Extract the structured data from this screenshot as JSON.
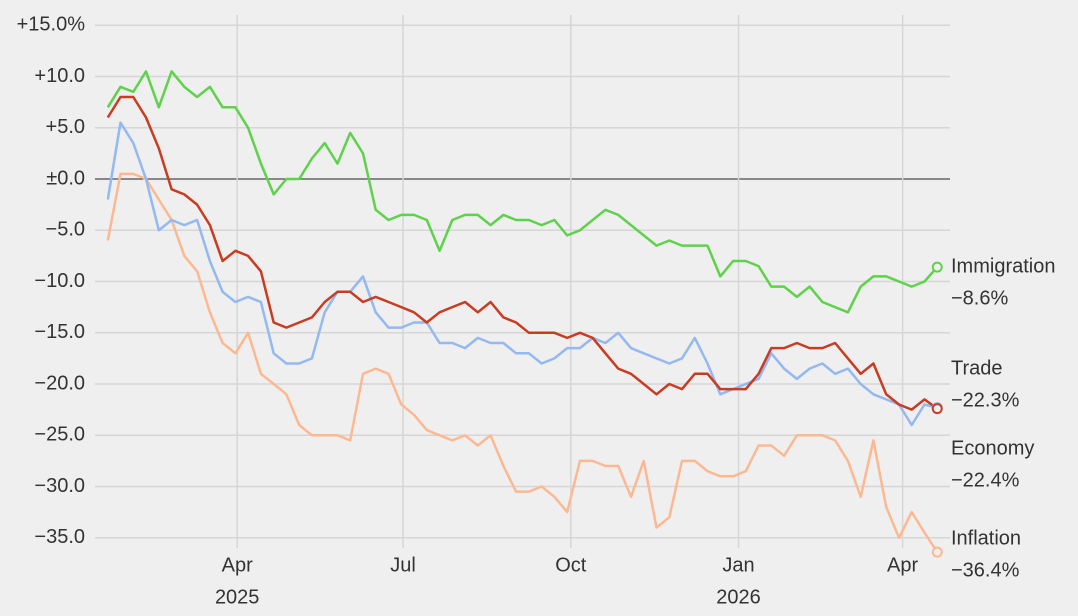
{
  "chart_data": {
    "type": "line",
    "x": [
      "2025-01-20",
      "2025-01-27",
      "2025-02-03",
      "2025-02-10",
      "2025-02-17",
      "2025-02-24",
      "2025-03-03",
      "2025-03-10",
      "2025-03-17",
      "2025-03-24",
      "2025-03-31",
      "2025-04-07",
      "2025-04-14",
      "2025-04-21",
      "2025-04-28",
      "2025-05-05",
      "2025-05-12",
      "2025-05-19",
      "2025-05-26",
      "2025-06-02",
      "2025-06-09",
      "2025-06-16",
      "2025-06-23",
      "2025-06-30",
      "2025-07-07",
      "2025-07-14",
      "2025-07-21",
      "2025-07-28",
      "2025-08-04",
      "2025-08-11",
      "2025-08-18",
      "2025-08-25",
      "2025-09-01",
      "2025-09-08",
      "2025-09-15",
      "2025-09-22",
      "2025-09-29",
      "2025-10-06",
      "2025-10-13",
      "2025-10-20",
      "2025-10-27",
      "2025-11-03",
      "2025-11-10",
      "2025-11-17",
      "2025-11-24",
      "2025-12-01",
      "2025-12-08",
      "2025-12-15",
      "2025-12-22",
      "2025-12-29",
      "2026-01-05",
      "2026-01-12",
      "2026-01-19",
      "2026-01-26",
      "2026-02-02",
      "2026-02-09",
      "2026-02-16",
      "2026-02-23",
      "2026-03-02",
      "2026-03-09",
      "2026-03-16",
      "2026-03-23",
      "2026-03-30",
      "2026-04-06",
      "2026-04-13",
      "2026-04-20"
    ],
    "series": [
      {
        "name": "Immigration",
        "color": "#5ed24a",
        "label_color": "#2a9a1a",
        "end_label": "−8.6%",
        "values": [
          7,
          9,
          8.5,
          10.5,
          7,
          10.5,
          9,
          8,
          9,
          7,
          7,
          5,
          1.5,
          -1.5,
          0,
          0,
          2,
          3.5,
          1.5,
          4.5,
          2.5,
          -3,
          -4,
          -3.5,
          -3.5,
          -4,
          -7,
          -4,
          -3.5,
          -3.5,
          -4.5,
          -3.5,
          -4,
          -4,
          -4.5,
          -4,
          -5.5,
          -5,
          -4,
          -3,
          -3.5,
          -4.5,
          -5.5,
          -6.5,
          -6,
          -6.5,
          -6.5,
          -6.5,
          -9.5,
          -8,
          -8,
          -8.5,
          -10.5,
          -10.5,
          -11.5,
          -10.5,
          -12,
          -12.5,
          -13,
          -10.5,
          -9.5,
          -9.5,
          -10,
          -10.5,
          -10,
          -8.6
        ]
      },
      {
        "name": "Trade",
        "color": "#94b8f0",
        "label_color": "#5a7fc0",
        "end_label": "−22.3%",
        "values": [
          -2,
          5.5,
          3.5,
          0,
          -5,
          -4,
          -4.5,
          -4,
          -8,
          -11,
          -12,
          -11.5,
          -12,
          -17,
          -18,
          -18,
          -17.5,
          -13,
          -11,
          -11,
          -9.5,
          -13,
          -14.5,
          -14.5,
          -14,
          -14,
          -16,
          -16,
          -16.5,
          -15.5,
          -16,
          -16,
          -17,
          -17,
          -18,
          -17.5,
          -16.5,
          -16.5,
          -15.5,
          -16,
          -15,
          -16.5,
          -17,
          -17.5,
          -18,
          -17.5,
          -15.5,
          -18,
          -21,
          -20.5,
          -20,
          -19.5,
          -17,
          -18.5,
          -19.5,
          -18.5,
          -18,
          -19,
          -18.5,
          -20,
          -21,
          -21.5,
          -22,
          -24,
          -22,
          -22.3
        ]
      },
      {
        "name": "Economy",
        "color": "#c83c22",
        "label_color": "#c8391e",
        "end_label": "−22.4%",
        "values": [
          6,
          8,
          8,
          6,
          3,
          -1,
          -1.5,
          -2.5,
          -4.5,
          -8,
          -7,
          -7.5,
          -9,
          -14,
          -14.5,
          -14,
          -13.5,
          -12,
          -11,
          -11,
          -12,
          -11.5,
          -12,
          -12.5,
          -13,
          -14,
          -13,
          -12.5,
          -12,
          -13,
          -12,
          -13.5,
          -14,
          -15,
          -15,
          -15,
          -15.5,
          -15,
          -15.5,
          -17,
          -18.5,
          -19,
          -20,
          -21,
          -20,
          -20.5,
          -19,
          -19,
          -20.5,
          -20.5,
          -20.5,
          -19,
          -16.5,
          -16.5,
          -16,
          -16.5,
          -16.5,
          -16,
          -17.5,
          -19,
          -18,
          -21,
          -22,
          -22.5,
          -21.5,
          -22.4
        ]
      },
      {
        "name": "Inflation",
        "color": "#fcb991",
        "label_color": "#a8704a",
        "end_label": "−36.4%",
        "values": [
          -6,
          0.5,
          0.5,
          0,
          -2,
          -4,
          -7.5,
          -9,
          -13,
          -16,
          -17,
          -15,
          -19,
          -20,
          -21,
          -24,
          -25,
          -25,
          -25,
          -25.5,
          -19,
          -18.5,
          -19,
          -22,
          -23,
          -24.5,
          -25,
          -25.5,
          -25,
          -26,
          -25,
          -28,
          -30.5,
          -30.5,
          -30,
          -31,
          -32.5,
          -27.5,
          -27.5,
          -28,
          -28,
          -31,
          -27.5,
          -34,
          -33,
          -27.5,
          -27.5,
          -28.5,
          -29,
          -29,
          -28.5,
          -26,
          -26,
          -27,
          -25,
          -25,
          -25,
          -25.5,
          -27.5,
          -31,
          -25.5,
          -32,
          -35,
          -32.5,
          -34.5,
          -36.4
        ]
      }
    ],
    "xlim": [
      "2025-01-13",
      "2026-04-27"
    ],
    "xticks": [
      {
        "value": "2025-04-01",
        "label": "Apr",
        "year": "2025"
      },
      {
        "value": "2025-07-01",
        "label": "Jul"
      },
      {
        "value": "2025-10-01",
        "label": "Oct"
      },
      {
        "value": "2026-01-01",
        "label": "Jan",
        "year": "2026"
      },
      {
        "value": "2026-04-01",
        "label": "Apr"
      }
    ],
    "ylim": [
      -36,
      16
    ],
    "yticks": [
      {
        "value": 15,
        "label": "+15.0%"
      },
      {
        "value": 10,
        "label": "+10.0"
      },
      {
        "value": 5,
        "label": "+5.0"
      },
      {
        "value": 0,
        "label": "±0.0"
      },
      {
        "value": -5,
        "label": "−5.0"
      },
      {
        "value": -10,
        "label": "−10.0"
      },
      {
        "value": -15,
        "label": "−15.0"
      },
      {
        "value": -20,
        "label": "−20.0"
      },
      {
        "value": -25,
        "label": "−25.0"
      },
      {
        "value": -30,
        "label": "−30.0"
      },
      {
        "value": -35,
        "label": "−35.0"
      }
    ],
    "grid": true
  }
}
